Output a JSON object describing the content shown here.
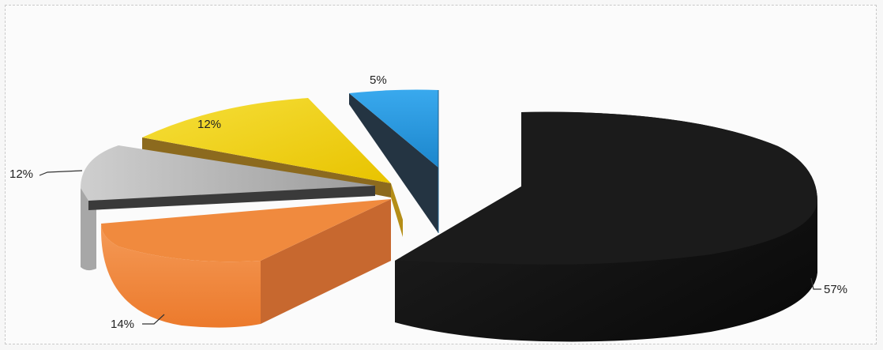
{
  "chart_data": {
    "type": "pie",
    "style": "3d-exploded",
    "title": "",
    "slices": [
      {
        "label": "57%",
        "value": 57,
        "color": "#151515"
      },
      {
        "label": "14%",
        "value": 14,
        "color": "#f0833a"
      },
      {
        "label": "12%",
        "value": 12,
        "color": "#b9b9b9"
      },
      {
        "label": "12%",
        "value": 12,
        "color": "#f3d21a"
      },
      {
        "label": "5%",
        "value": 5,
        "color": "#2a9be0"
      }
    ],
    "legend": "none"
  }
}
